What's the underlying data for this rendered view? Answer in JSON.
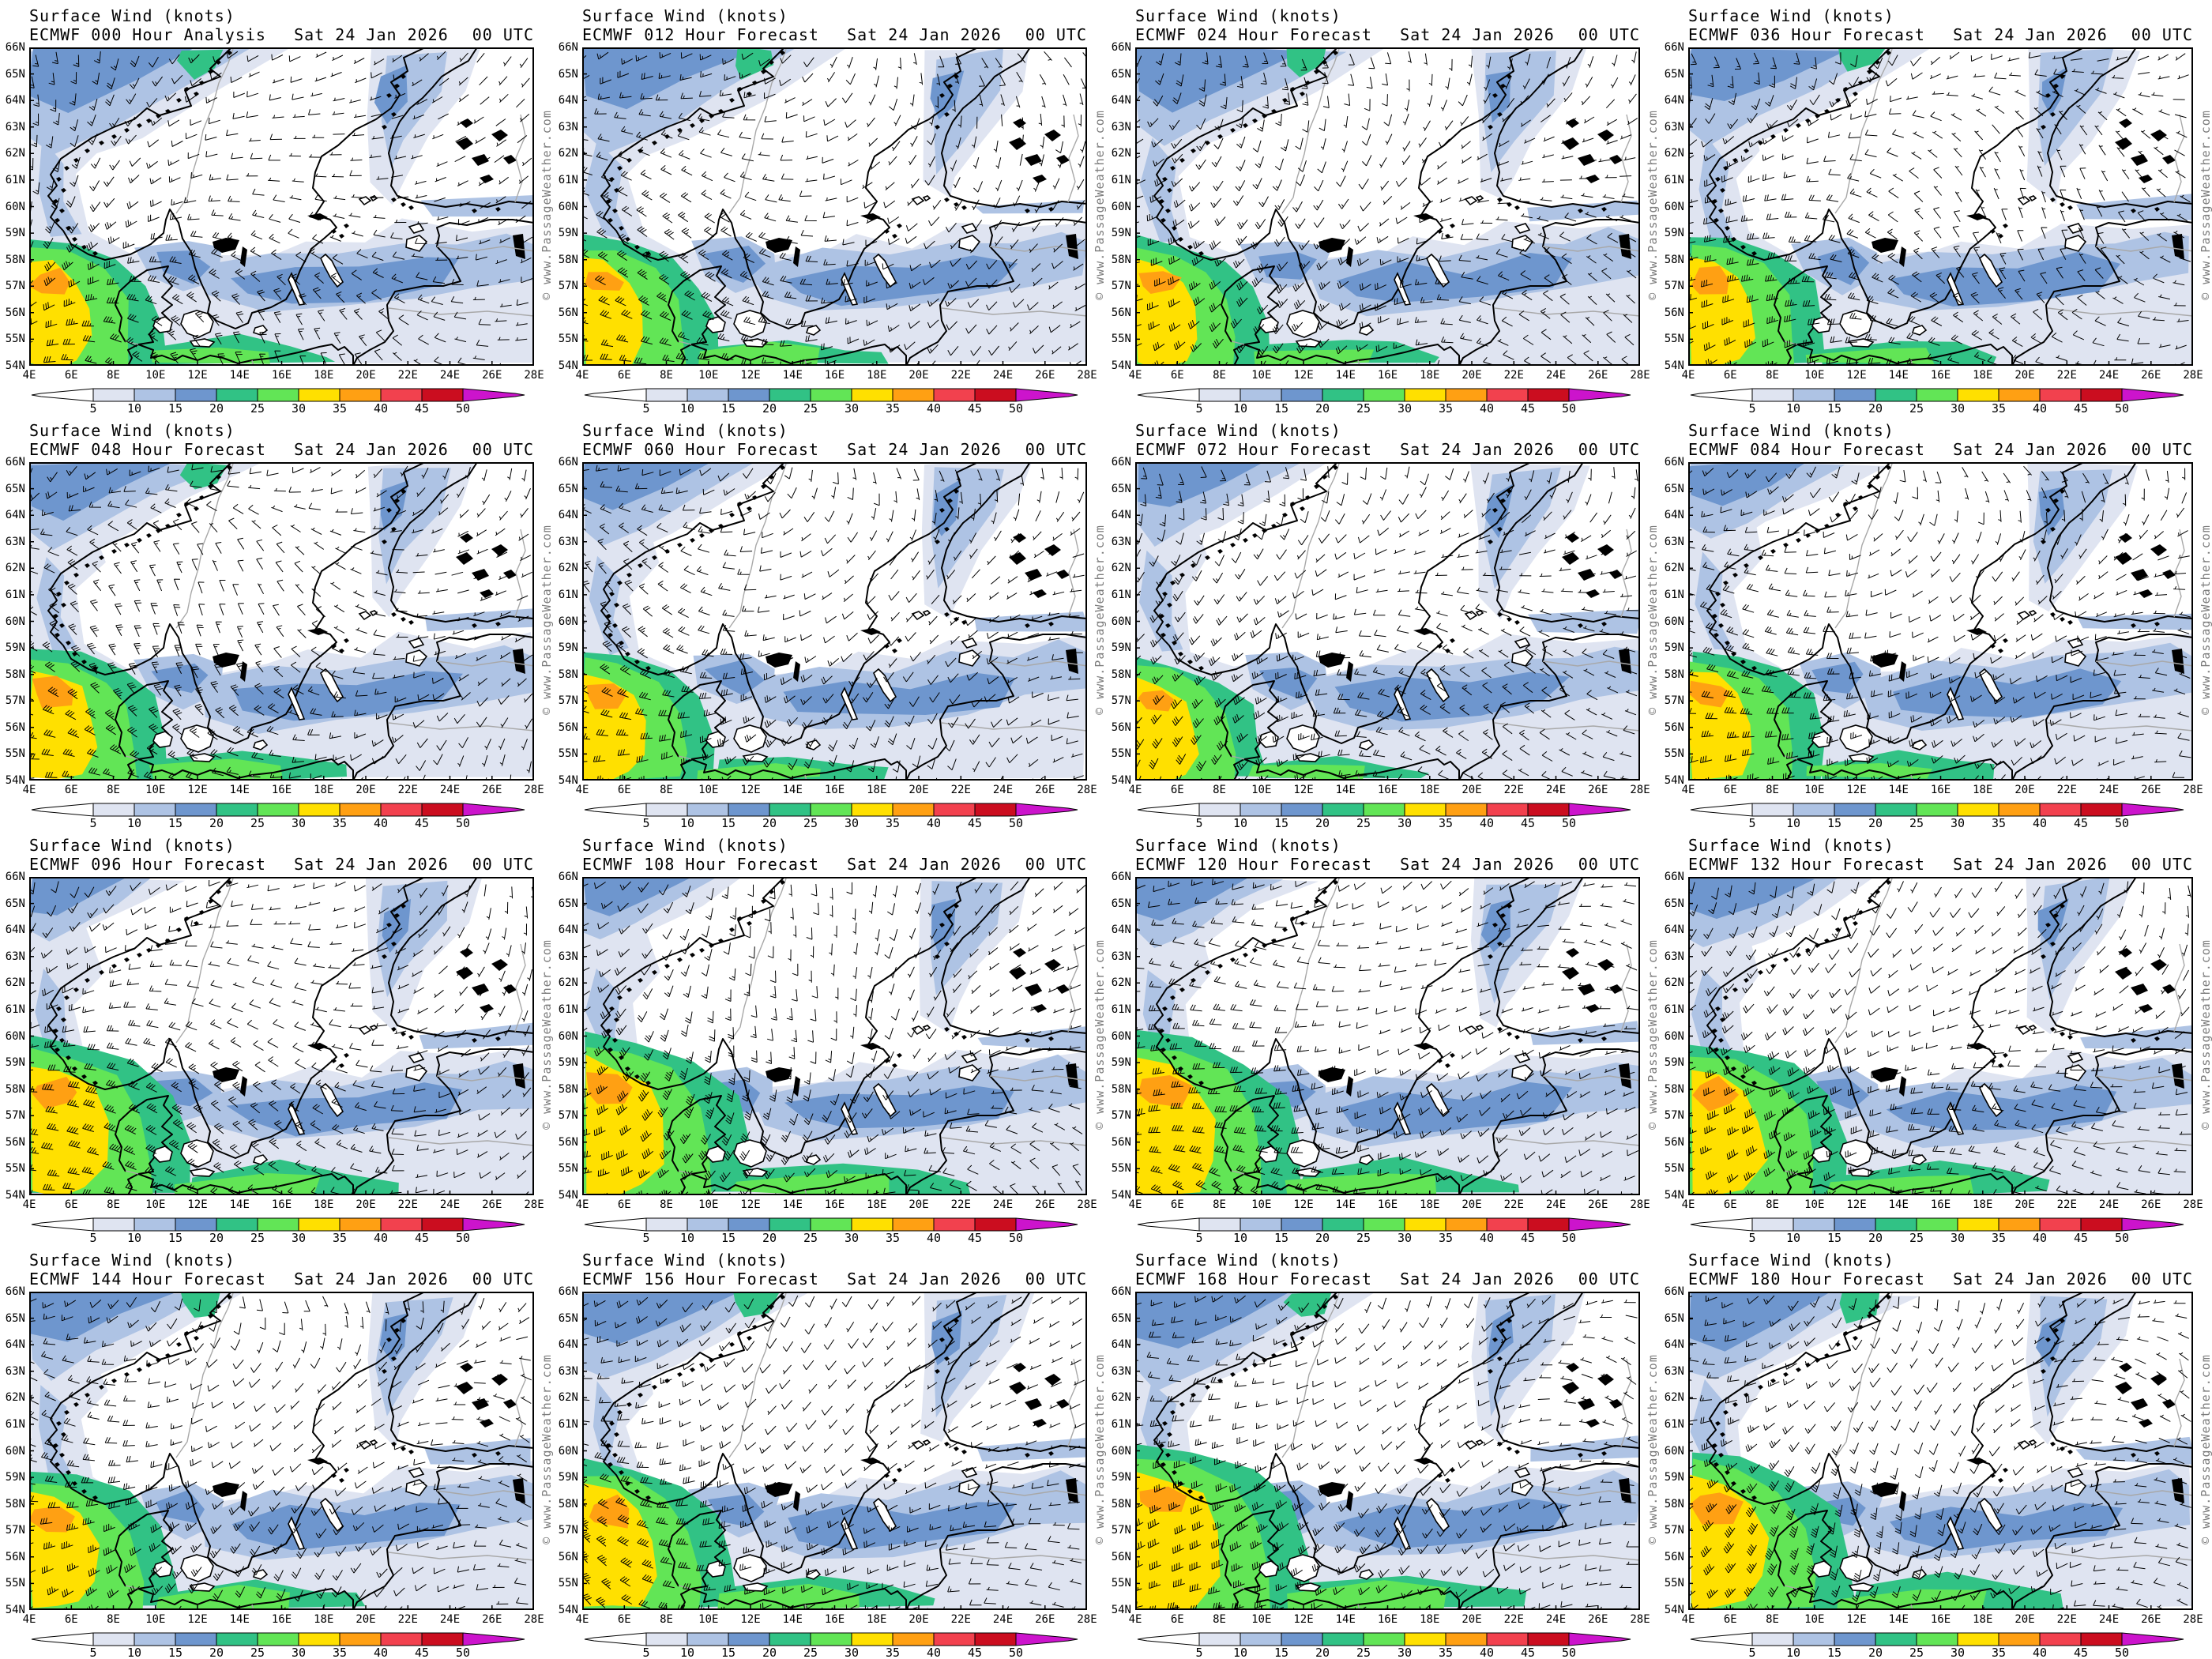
{
  "header": {
    "title": "Surface Wind (knots)",
    "date": "Sat 24 Jan 2026",
    "time": "00 UTC"
  },
  "watermark": "© www.PassageWeather.com",
  "panels": [
    {
      "model_label": "ECMWF 000 Hour Analysis"
    },
    {
      "model_label": "ECMWF 012 Hour Forecast"
    },
    {
      "model_label": "ECMWF 024 Hour Forecast"
    },
    {
      "model_label": "ECMWF 036 Hour Forecast"
    },
    {
      "model_label": "ECMWF 048 Hour Forecast"
    },
    {
      "model_label": "ECMWF 060 Hour Forecast"
    },
    {
      "model_label": "ECMWF 072 Hour Forecast"
    },
    {
      "model_label": "ECMWF 084 Hour Forecast"
    },
    {
      "model_label": "ECMWF 096 Hour Forecast"
    },
    {
      "model_label": "ECMWF 108 Hour Forecast"
    },
    {
      "model_label": "ECMWF 120 Hour Forecast"
    },
    {
      "model_label": "ECMWF 132 Hour Forecast"
    },
    {
      "model_label": "ECMWF 144 Hour Forecast"
    },
    {
      "model_label": "ECMWF 156 Hour Forecast"
    },
    {
      "model_label": "ECMWF 168 Hour Forecast"
    },
    {
      "model_label": "ECMWF 180 Hour Forecast"
    }
  ],
  "map": {
    "lat_labels": [
      "66N",
      "65N",
      "64N",
      "63N",
      "62N",
      "61N",
      "60N",
      "59N",
      "58N",
      "57N",
      "56N",
      "55N",
      "54N"
    ],
    "lon_labels": [
      "4E",
      "6E",
      "8E",
      "10E",
      "12E",
      "14E",
      "16E",
      "18E",
      "20E",
      "22E",
      "24E",
      "26E",
      "28E"
    ]
  },
  "scale": {
    "values": [
      "5",
      "10",
      "15",
      "20",
      "25",
      "30",
      "35",
      "40",
      "45",
      "50"
    ],
    "colors": [
      "#dfe4f1",
      "#aec3e4",
      "#6e96ce",
      "#31c285",
      "#62e556",
      "#ffe000",
      "#ffa013",
      "#f2414e",
      "#cb0d1f"
    ],
    "underflow_color": "#ffffff",
    "overflow_color": "#cc14cc"
  }
}
